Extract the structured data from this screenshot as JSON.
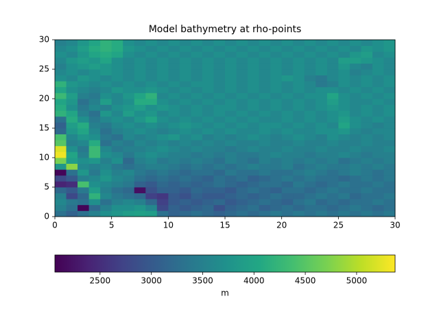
{
  "chart_data": {
    "type": "heatmap",
    "title": "Model bathymetry at rho-points",
    "xlim": [
      0,
      30
    ],
    "ylim": [
      0,
      30
    ],
    "xticks": [
      0,
      5,
      10,
      15,
      20,
      25,
      30
    ],
    "yticks": [
      0,
      5,
      10,
      15,
      20,
      25,
      30
    ],
    "colorbar": {
      "label": "m",
      "lim": [
        2060,
        5375
      ],
      "ticks": [
        2500,
        3000,
        3500,
        4000,
        4500,
        5000
      ]
    },
    "z": [
      [
        3300,
        3100,
        3300,
        3500,
        3700,
        3800,
        3900,
        3950,
        3900,
        3300,
        3100,
        3200,
        3300,
        3200,
        3100,
        3200,
        3300,
        3200,
        3300,
        3400,
        3300,
        3400,
        3300,
        3400,
        3300,
        3400,
        3300,
        3400,
        3300,
        3400
      ],
      [
        3500,
        3300,
        2100,
        3200,
        3500,
        3700,
        3700,
        3800,
        3600,
        2800,
        3100,
        3000,
        3100,
        3200,
        2900,
        3100,
        3200,
        3300,
        3100,
        3200,
        3300,
        3200,
        3300,
        3300,
        3200,
        3300,
        3400,
        3300,
        3200,
        3300
      ],
      [
        3600,
        3400,
        3300,
        3700,
        3300,
        3500,
        3600,
        3500,
        3200,
        2700,
        3000,
        3100,
        3000,
        3100,
        3200,
        3000,
        3100,
        3200,
        3300,
        3200,
        3100,
        3300,
        3400,
        3200,
        3300,
        3200,
        3300,
        3300,
        3400,
        3300
      ],
      [
        3500,
        2800,
        3200,
        4200,
        3600,
        3400,
        3300,
        3200,
        2700,
        2600,
        3000,
        2900,
        3100,
        3000,
        3000,
        3100,
        3200,
        3100,
        3200,
        3300,
        3200,
        3200,
        3300,
        3400,
        3300,
        3400,
        3200,
        3300,
        3300,
        3400
      ],
      [
        3200,
        3000,
        3400,
        3900,
        3500,
        3300,
        3200,
        2200,
        2900,
        3100,
        3100,
        3000,
        3200,
        3100,
        3100,
        3000,
        3200,
        3300,
        3200,
        3100,
        3300,
        3300,
        3200,
        3300,
        3400,
        3300,
        3300,
        3400,
        3300,
        3300
      ],
      [
        2400,
        2500,
        4400,
        3700,
        3600,
        3500,
        3400,
        3100,
        3000,
        3200,
        3100,
        3200,
        3100,
        3200,
        3300,
        3200,
        3100,
        3200,
        3300,
        3300,
        3200,
        3400,
        3300,
        3200,
        3300,
        3400,
        3300,
        3300,
        3400,
        3300
      ],
      [
        2800,
        3000,
        3500,
        3600,
        3800,
        3600,
        3500,
        3300,
        3200,
        3300,
        3200,
        3300,
        3200,
        3100,
        3300,
        3200,
        3300,
        3100,
        3200,
        3300,
        3400,
        3300,
        3400,
        3300,
        3300,
        3200,
        3300,
        3400,
        3300,
        3400
      ],
      [
        2100,
        3300,
        3800,
        3400,
        3700,
        3500,
        3600,
        3400,
        3300,
        3400,
        3300,
        3200,
        3300,
        3300,
        3200,
        3400,
        3300,
        3300,
        3400,
        3300,
        3300,
        3400,
        3500,
        3400,
        3300,
        3400,
        3500,
        3400,
        3300,
        3400
      ],
      [
        3800,
        4800,
        3600,
        3500,
        3600,
        3400,
        3300,
        3400,
        3500,
        3500,
        3400,
        3300,
        3400,
        3300,
        3400,
        3300,
        3400,
        3500,
        3400,
        3400,
        3500,
        3300,
        3400,
        3500,
        3400,
        3400,
        3500,
        3400,
        3500,
        3400
      ],
      [
        4700,
        3900,
        3700,
        3800,
        3500,
        3700,
        3200,
        3500,
        3600,
        3400,
        3500,
        3400,
        3500,
        3400,
        3300,
        3500,
        3400,
        3300,
        3500,
        3400,
        3500,
        3400,
        3500,
        3400,
        3500,
        3300,
        3400,
        3500,
        3400,
        3500
      ],
      [
        5300,
        4000,
        3500,
        4300,
        3700,
        3600,
        3400,
        3600,
        3700,
        3600,
        3500,
        3500,
        3400,
        3500,
        3400,
        3500,
        3400,
        3400,
        3500,
        3600,
        3500,
        3500,
        3400,
        3500,
        3500,
        3600,
        3500,
        3400,
        3500,
        3500
      ],
      [
        5200,
        3700,
        3400,
        4300,
        3600,
        3400,
        3500,
        3500,
        3600,
        3700,
        3600,
        3500,
        3600,
        3500,
        3500,
        3400,
        3500,
        3600,
        3500,
        3500,
        3600,
        3500,
        3500,
        3600,
        3500,
        3500,
        3600,
        3500,
        3500,
        3600
      ],
      [
        4500,
        3500,
        3600,
        4100,
        3300,
        3500,
        3400,
        3600,
        3500,
        3600,
        3500,
        3600,
        3500,
        3600,
        3500,
        3600,
        3500,
        3500,
        3600,
        3500,
        3500,
        3600,
        3500,
        3500,
        3600,
        3500,
        3500,
        3600,
        3500,
        3500
      ],
      [
        4400,
        3600,
        3800,
        3700,
        3400,
        3300,
        3600,
        3500,
        3600,
        3700,
        3800,
        3600,
        3700,
        3500,
        3600,
        3500,
        3600,
        3700,
        3600,
        3500,
        3600,
        3700,
        3600,
        3500,
        3700,
        3600,
        3500,
        3600,
        3500,
        3600
      ],
      [
        3200,
        3800,
        4000,
        3600,
        3300,
        3500,
        3600,
        3700,
        3600,
        3500,
        3600,
        3700,
        3600,
        3700,
        3600,
        3700,
        3600,
        3600,
        3700,
        3600,
        3700,
        3600,
        3600,
        3700,
        3700,
        3800,
        3600,
        3500,
        3600,
        3600
      ],
      [
        3100,
        3900,
        4100,
        3500,
        3400,
        3600,
        3700,
        3600,
        3700,
        3600,
        3700,
        3800,
        3700,
        3600,
        3700,
        3600,
        3700,
        3600,
        3700,
        3700,
        3600,
        3700,
        3600,
        3700,
        3600,
        4000,
        3700,
        3600,
        3500,
        3600
      ],
      [
        3300,
        4100,
        3700,
        3400,
        3600,
        3700,
        3600,
        3800,
        4000,
        3700,
        3600,
        3700,
        3600,
        3700,
        3600,
        3700,
        3600,
        3700,
        3600,
        3600,
        3700,
        3600,
        3700,
        3600,
        3700,
        3900,
        3700,
        3600,
        3700,
        3600
      ],
      [
        4200,
        4000,
        3500,
        3300,
        3800,
        3600,
        3900,
        3700,
        3800,
        3600,
        3700,
        3600,
        3700,
        3600,
        3700,
        3600,
        3700,
        3600,
        3700,
        3600,
        3700,
        3600,
        3700,
        3600,
        3700,
        3800,
        3600,
        3700,
        3600,
        3700
      ],
      [
        4100,
        3700,
        3400,
        3600,
        3500,
        3700,
        3800,
        3900,
        3700,
        3800,
        3700,
        3600,
        3700,
        3600,
        3700,
        3700,
        3600,
        3700,
        3600,
        3700,
        3600,
        3700,
        3600,
        3700,
        3800,
        3700,
        3600,
        3700,
        3600,
        3700
      ],
      [
        4000,
        3800,
        3300,
        3500,
        3900,
        3600,
        3700,
        4100,
        4100,
        3700,
        3600,
        3700,
        3600,
        3700,
        3600,
        3700,
        3600,
        3700,
        3600,
        3700,
        3600,
        3700,
        3600,
        3700,
        3900,
        3700,
        3600,
        3600,
        3700,
        3600
      ],
      [
        4300,
        3900,
        3500,
        3400,
        3700,
        3600,
        3800,
        4000,
        4200,
        3600,
        3700,
        3600,
        3700,
        3600,
        3700,
        3600,
        3700,
        3600,
        3700,
        3600,
        3700,
        3600,
        3700,
        3700,
        4000,
        3700,
        3600,
        3700,
        3600,
        3700
      ],
      [
        4000,
        3700,
        3600,
        3500,
        3600,
        3800,
        3700,
        3700,
        3800,
        3700,
        3600,
        3700,
        3600,
        3700,
        3600,
        3700,
        3600,
        3700,
        3600,
        3700,
        3600,
        3700,
        3600,
        3700,
        3700,
        3600,
        3700,
        3600,
        3700,
        3600
      ],
      [
        4200,
        3800,
        3700,
        3600,
        3700,
        3600,
        3700,
        3600,
        3700,
        3600,
        3700,
        3600,
        3700,
        3700,
        3600,
        3700,
        3600,
        3700,
        3600,
        3700,
        3600,
        3700,
        3600,
        3400,
        3500,
        3700,
        3600,
        3700,
        3600,
        3700
      ],
      [
        3700,
        3600,
        3800,
        3700,
        3600,
        3700,
        3600,
        3700,
        3600,
        3700,
        3600,
        3700,
        3600,
        3700,
        3600,
        3700,
        3600,
        3700,
        3600,
        3700,
        3800,
        3700,
        3500,
        3400,
        3600,
        3700,
        3600,
        3700,
        3600,
        3700
      ],
      [
        3600,
        3700,
        3600,
        3700,
        3800,
        3700,
        3600,
        3700,
        3600,
        3700,
        3600,
        3700,
        3600,
        3700,
        3600,
        3700,
        3600,
        3700,
        3600,
        3700,
        3600,
        3700,
        3600,
        3700,
        3600,
        3700,
        3500,
        3600,
        3700,
        3600
      ],
      [
        3500,
        3700,
        3800,
        3900,
        3800,
        3700,
        3600,
        3700,
        3600,
        3700,
        3600,
        3700,
        3600,
        3700,
        3600,
        3700,
        3600,
        3700,
        3600,
        3700,
        3600,
        3700,
        3600,
        3700,
        3600,
        3800,
        3600,
        3500,
        3700,
        3600
      ],
      [
        3600,
        3800,
        3900,
        3800,
        4000,
        3700,
        3600,
        3700,
        3600,
        3700,
        3600,
        3700,
        3600,
        3700,
        3600,
        3700,
        3600,
        3700,
        3600,
        3700,
        3600,
        3700,
        3600,
        3700,
        3600,
        3900,
        3900,
        3800,
        3700,
        3600
      ],
      [
        3700,
        3600,
        3800,
        4000,
        4100,
        4000,
        3700,
        3600,
        3700,
        3600,
        3700,
        3600,
        3700,
        3600,
        3700,
        3600,
        3700,
        3600,
        3700,
        3600,
        3700,
        3600,
        3700,
        3600,
        3700,
        3600,
        3800,
        3900,
        3600,
        3700
      ],
      [
        3600,
        3700,
        3900,
        4100,
        4200,
        4100,
        3800,
        3700,
        3600,
        3700,
        3600,
        3700,
        3600,
        3700,
        3600,
        3700,
        3600,
        3700,
        3600,
        3700,
        3600,
        3700,
        3600,
        3700,
        3600,
        3700,
        3600,
        3800,
        3700,
        3800
      ],
      [
        3500,
        3600,
        3800,
        4000,
        4200,
        4100,
        3700,
        3600,
        3700,
        3600,
        3700,
        3600,
        3700,
        3600,
        3700,
        3600,
        3700,
        3600,
        3700,
        3600,
        3700,
        3600,
        3700,
        3600,
        3700,
        3600,
        3700,
        3600,
        3700,
        3800
      ]
    ]
  }
}
